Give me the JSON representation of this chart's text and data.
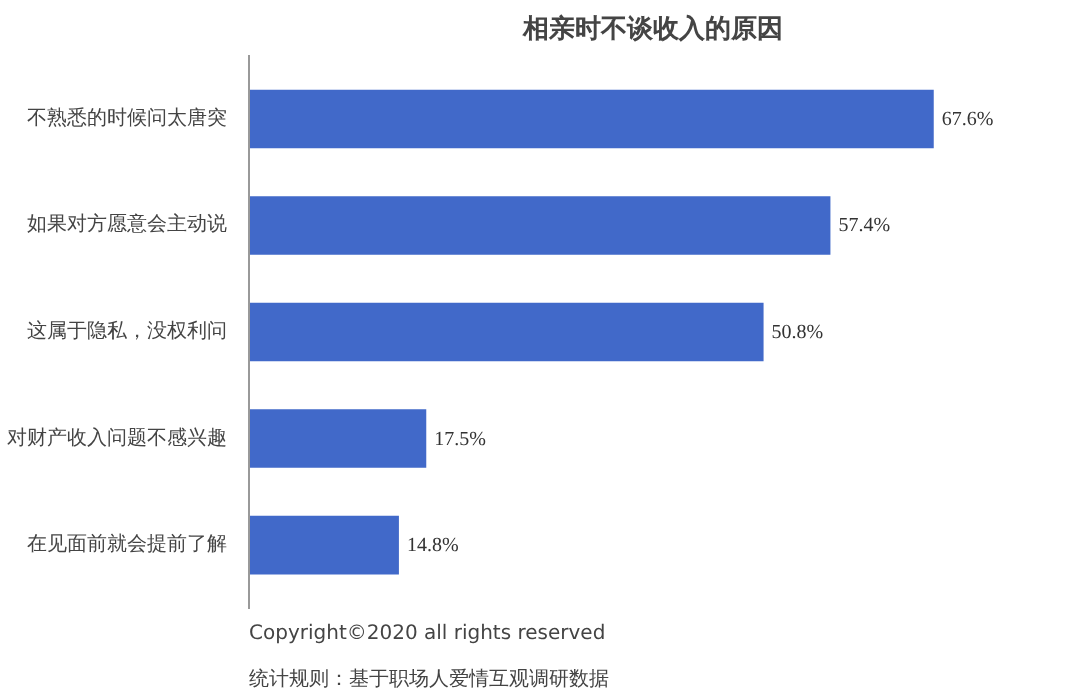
{
  "chart_data": {
    "type": "bar",
    "orientation": "horizontal",
    "title": "相亲时不谈收入的原因",
    "categories": [
      "不熟悉的时候问太唐突",
      "如果对方愿意会主动说",
      "这属于隐私，没权利问",
      "对财产收入问题不感兴趣",
      "在见面前就会提前了解"
    ],
    "values": [
      67.6,
      57.4,
      50.8,
      17.5,
      14.8
    ],
    "value_labels": [
      "67.6%",
      "57.4%",
      "50.8%",
      "17.5%",
      "14.8%"
    ],
    "color": "#4169c9",
    "grid": false,
    "tick_labels": "y",
    "annotations": [
      "Copyright©2020 all rights reserved",
      "统计规则：基于职场人爱情互观调研数据"
    ]
  }
}
